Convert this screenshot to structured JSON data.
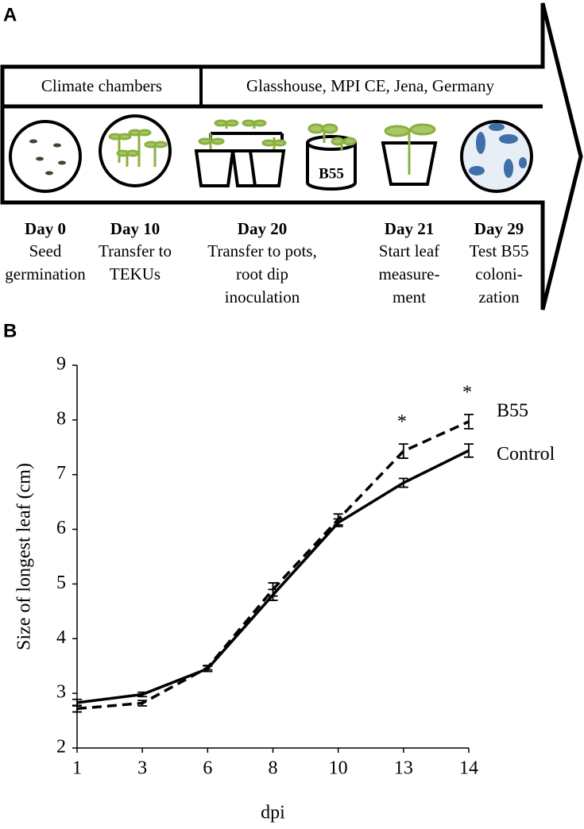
{
  "panel_a": {
    "label": "A",
    "headers": [
      "Climate chambers",
      "Glasshouse, MPI CE, Jena, Germany"
    ],
    "pot_tag": "B55",
    "steps": [
      {
        "day": "Day 0",
        "lines": [
          "Seed",
          "germination"
        ]
      },
      {
        "day": "Day 10",
        "lines": [
          "Transfer to",
          "TEKUs"
        ]
      },
      {
        "day": "Day 20",
        "lines": [
          "Transfer to pots,",
          "root dip",
          "inoculation"
        ]
      },
      {
        "day": "Day 21",
        "lines": [
          "Start leaf",
          "measure-",
          "ment"
        ]
      },
      {
        "day": "Day 29",
        "lines": [
          "Test B55",
          "coloni-",
          "zation"
        ]
      }
    ]
  },
  "chart_data": {
    "type": "line",
    "panel_label": "B",
    "x_label": "dpi",
    "y_label": "Size of longest leaf (cm)",
    "categories": [
      "1",
      "3",
      "6",
      "8",
      "10",
      "13",
      "14"
    ],
    "series": [
      {
        "name": "B55",
        "color": "#000000",
        "dash": true,
        "values": [
          2.72,
          2.82,
          3.47,
          4.9,
          6.18,
          7.43,
          7.97
        ],
        "errors": [
          0.06,
          0.05,
          0.04,
          0.12,
          0.1,
          0.13,
          0.13
        ]
      },
      {
        "name": "Control",
        "color": "#000000",
        "dash": false,
        "values": [
          2.83,
          2.98,
          3.45,
          4.8,
          6.12,
          6.85,
          7.44
        ],
        "errors": [
          0.06,
          0.04,
          0.05,
          0.1,
          0.07,
          0.08,
          0.12
        ]
      }
    ],
    "annotations": [
      {
        "category": "13",
        "text": "*"
      },
      {
        "category": "14",
        "text": "*"
      }
    ],
    "ylim": [
      2,
      9
    ],
    "yticks": [
      2,
      3,
      4,
      5,
      6,
      7,
      8,
      9
    ],
    "grid": false
  }
}
